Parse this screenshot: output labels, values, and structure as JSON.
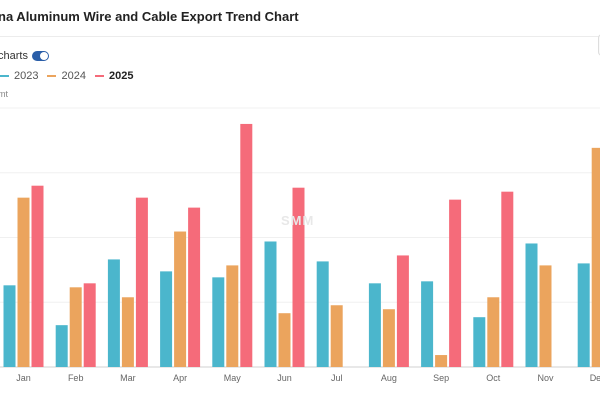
{
  "title": "na Aluminum Wire and Cable Export Trend Chart",
  "toggle": {
    "label": "charts",
    "on": true
  },
  "legend": [
    {
      "name": "2023",
      "color": "#4bb6cc",
      "bold": false
    },
    {
      "name": "2024",
      "color": "#eba45d",
      "bold": false
    },
    {
      "name": "2025",
      "color": "#f56b7a",
      "bold": true
    }
  ],
  "unit_label": "mt",
  "watermark": "SMM",
  "chart_data": {
    "type": "bar",
    "categories": [
      "Jan",
      "Feb",
      "Mar",
      "Apr",
      "May",
      "Jun",
      "Jul",
      "Aug",
      "Sep",
      "Oct",
      "Nov",
      "Dec"
    ],
    "series": [
      {
        "name": "2023",
        "color": "#4bb6cc",
        "values": [
          41,
          21,
          54,
          48,
          45,
          63,
          53,
          42,
          43,
          25,
          62,
          52
        ]
      },
      {
        "name": "2024",
        "color": "#eba45d",
        "values": [
          85,
          40,
          35,
          68,
          51,
          27,
          31,
          29,
          6,
          35,
          51,
          110
        ]
      },
      {
        "name": "2025",
        "color": "#f56b7a",
        "values": [
          91,
          42,
          85,
          80,
          122,
          90,
          null,
          56,
          84,
          88,
          null,
          null
        ]
      }
    ],
    "ylim": [
      0,
      130
    ],
    "grid": true
  }
}
